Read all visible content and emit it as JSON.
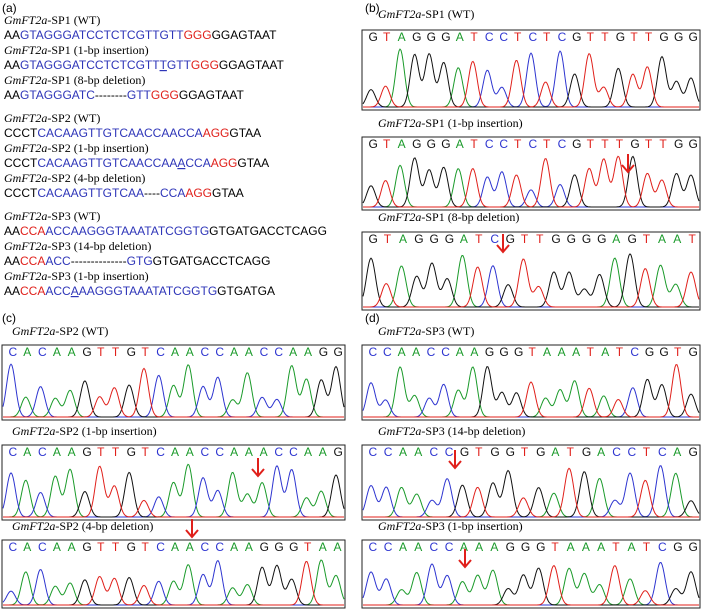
{
  "panel_a": {
    "label": "(a)",
    "entries": [
      {
        "gene": "GmFT2a",
        "suffix": "-SP1 (WT)",
        "segments": [
          {
            "text": "AA",
            "color": "#000000"
          },
          {
            "text": "GTAGGGATCCTCTCGTTGTT",
            "color": "#2e35b8"
          },
          {
            "text": "GGG",
            "color": "#e0201b"
          },
          {
            "text": "GGAGTAAT",
            "color": "#000000"
          }
        ]
      },
      {
        "gene": "GmFT2a",
        "suffix": "-SP1 (1-bp insertion)",
        "segments": [
          {
            "text": "AA",
            "color": "#000000"
          },
          {
            "text": "GTAGGGATCCTCTCGTT",
            "color": "#2e35b8"
          },
          {
            "text": "T",
            "color": "#2e35b8",
            "underline": true
          },
          {
            "text": "GTT",
            "color": "#2e35b8"
          },
          {
            "text": "GGG",
            "color": "#e0201b"
          },
          {
            "text": "GGAGTAAT",
            "color": "#000000"
          }
        ]
      },
      {
        "gene": "GmFT2a",
        "suffix": "-SP1 (8-bp deletion)",
        "segments": [
          {
            "text": "AA",
            "color": "#000000"
          },
          {
            "text": "GTAGGGATC",
            "color": "#2e35b8"
          },
          {
            "text": "--------",
            "color": "#000000"
          },
          {
            "text": "GTT",
            "color": "#2e35b8"
          },
          {
            "text": "GGG",
            "color": "#e0201b"
          },
          {
            "text": "GGAGTAAT",
            "color": "#000000"
          }
        ]
      },
      {
        "gene": "GmFT2a",
        "suffix": "-SP2 (WT)",
        "segments": [
          {
            "text": "CCCT",
            "color": "#000000"
          },
          {
            "text": "CACAAGTTGTCAACCAACCA",
            "color": "#2e35b8"
          },
          {
            "text": "AGG",
            "color": "#e0201b"
          },
          {
            "text": "GTAA",
            "color": "#000000"
          }
        ]
      },
      {
        "gene": "GmFT2a",
        "suffix": "-SP2 (1-bp insertion)",
        "segments": [
          {
            "text": "CCCT",
            "color": "#000000"
          },
          {
            "text": "CACAAGTTGTCAACCAA",
            "color": "#2e35b8"
          },
          {
            "text": "A",
            "color": "#2e35b8",
            "underline": true
          },
          {
            "text": "CCA",
            "color": "#2e35b8"
          },
          {
            "text": "AGG",
            "color": "#e0201b"
          },
          {
            "text": "GTAA",
            "color": "#000000"
          }
        ]
      },
      {
        "gene": "GmFT2a",
        "suffix": "-SP2 (4-bp deletion)",
        "segments": [
          {
            "text": "CCCT",
            "color": "#000000"
          },
          {
            "text": "CACAAGTTGTCAA",
            "color": "#2e35b8"
          },
          {
            "text": "----",
            "color": "#000000"
          },
          {
            "text": "CCA",
            "color": "#2e35b8"
          },
          {
            "text": "AGG",
            "color": "#e0201b"
          },
          {
            "text": "GTAA",
            "color": "#000000"
          }
        ]
      },
      {
        "gene": "GmFT2a",
        "suffix": "-SP3 (WT)",
        "segments": [
          {
            "text": "AA",
            "color": "#000000"
          },
          {
            "text": "CCA",
            "color": "#e0201b"
          },
          {
            "text": "ACCAAGGGTAAATATCGGTG",
            "color": "#2e35b8"
          },
          {
            "text": "GTGATGACCTCAGG",
            "color": "#000000"
          }
        ]
      },
      {
        "gene": "GmFT2a",
        "suffix": "-SP3 (14-bp deletion)",
        "segments": [
          {
            "text": "AA",
            "color": "#000000"
          },
          {
            "text": "CCA",
            "color": "#e0201b"
          },
          {
            "text": "ACC",
            "color": "#2e35b8"
          },
          {
            "text": "--------------",
            "color": "#000000"
          },
          {
            "text": "GTG",
            "color": "#2e35b8"
          },
          {
            "text": "GTGATGACCTCAGG",
            "color": "#000000"
          }
        ]
      },
      {
        "gene": "GmFT2a",
        "suffix": "-SP3 (1-bp insertion)",
        "segments": [
          {
            "text": "AA",
            "color": "#000000"
          },
          {
            "text": "CCA",
            "color": "#e0201b"
          },
          {
            "text": "ACC",
            "color": "#2e35b8"
          },
          {
            "text": "A",
            "color": "#2e35b8",
            "underline": true
          },
          {
            "text": "AAGGGTAAATATCGGTG",
            "color": "#2e35b8"
          },
          {
            "text": "GTGATGA",
            "color": "#000000"
          }
        ]
      }
    ]
  },
  "chromatogram_panels": [
    {
      "label": "(b)",
      "entries": [
        {
          "gene": "GmFT2a",
          "suffix": "-SP1 (WT)",
          "bases": "GTAGGGATCCTCTCGTTGTTGGG"
        },
        {
          "gene": "GmFT2a",
          "suffix": "-SP1 (1-bp insertion)",
          "bases": "GTAGGGATCCTCTCGTTTGTTGG"
        },
        {
          "gene": "GmFT2a",
          "suffix": "-SP1 (8-bp deletion)",
          "bases": "GTAGGGATCGTTGGGGAGTAAT"
        }
      ]
    },
    {
      "label": "(c)",
      "entries": [
        {
          "gene": "GmFT2a",
          "suffix": "-SP2 (WT)",
          "bases": "CACAAGTTGTCAACCAACCAAGG"
        },
        {
          "gene": "GmFT2a",
          "suffix": "-SP2 (1-bp insertion)",
          "bases": "CACAAGTTGTCAACCAAACCAAG"
        },
        {
          "gene": "GmFT2a",
          "suffix": "-SP2 (4-bp deletion)",
          "bases": "CACAAGTTGTCAACCAAGGGTAA"
        }
      ]
    },
    {
      "label": "(d)",
      "entries": [
        {
          "gene": "GmFT2a",
          "suffix": "-SP3 (WT)",
          "bases": "CCAACCAAGGGTAAATATCGGTG"
        },
        {
          "gene": "GmFT2a",
          "suffix": "-SP3 (14-bp deletion)",
          "bases": "CCAACCGTGGTGATGACCTCAG"
        },
        {
          "gene": "GmFT2a",
          "suffix": "-SP3 (1-bp insertion)",
          "bases": "CCAACCAAAGGGTAAATATCGG"
        }
      ]
    }
  ]
}
